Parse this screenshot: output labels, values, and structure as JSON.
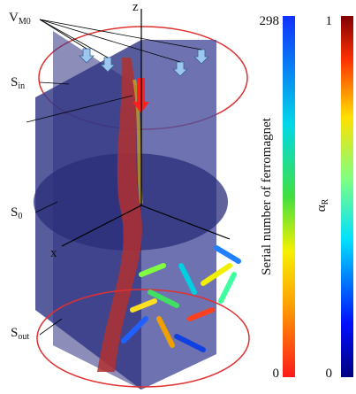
{
  "figure": {
    "axes": {
      "z": "z",
      "x": "x"
    },
    "labels": {
      "v_m0": {
        "symbol": "V",
        "subscript": "M0"
      },
      "s_in": {
        "symbol": "S",
        "subscript": "in"
      },
      "s_0": {
        "symbol": "S",
        "subscript": "0"
      },
      "s_out": {
        "symbol": "S",
        "subscript": "out"
      }
    }
  },
  "colorbars": [
    {
      "label": "Serial number of ferromagnet",
      "max": 298,
      "min": 0
    },
    {
      "label": {
        "symbol": "α",
        "subscript": "R"
      },
      "max": 1,
      "min": 0
    }
  ]
}
